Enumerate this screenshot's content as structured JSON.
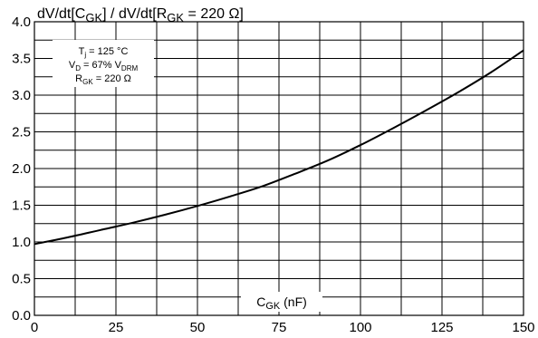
{
  "chart_data": {
    "type": "line",
    "title": {
      "prefix": "dV/dt[C",
      "sub1": "GK",
      "middle": "] / dV/dt[R",
      "sub2": "GK",
      "suffix": " = 220 Ω]"
    },
    "xlabel": {
      "main": "C",
      "sub": "GK",
      "unit": " (nF)"
    },
    "ylabel": "",
    "xlim": [
      0,
      150
    ],
    "ylim": [
      0,
      4.0
    ],
    "x_ticks": [
      "0",
      "25",
      "50",
      "75",
      "100",
      "125",
      "150"
    ],
    "y_ticks": [
      "0.0",
      "0.5",
      "1.0",
      "1.5",
      "2.0",
      "2.5",
      "3.0",
      "3.5",
      "4.0"
    ],
    "grid": true,
    "conditions": {
      "line1": {
        "main": "T",
        "sub": "j",
        "rest": " = 125 °C"
      },
      "line2": {
        "main": "V",
        "sub": "D",
        "rest": " = 67% V",
        "sub2": "DRM"
      },
      "line3": {
        "main": "R",
        "sub": "GK",
        "rest": " = 220 Ω"
      }
    },
    "series": [
      {
        "x": [
          0,
          10,
          20,
          30,
          40,
          50,
          60,
          70,
          80,
          90,
          100,
          110,
          120,
          130,
          140,
          150
        ],
        "values": [
          0.97,
          1.06,
          1.16,
          1.26,
          1.37,
          1.49,
          1.62,
          1.76,
          1.93,
          2.11,
          2.32,
          2.55,
          2.79,
          3.04,
          3.31,
          3.61
        ]
      }
    ]
  }
}
